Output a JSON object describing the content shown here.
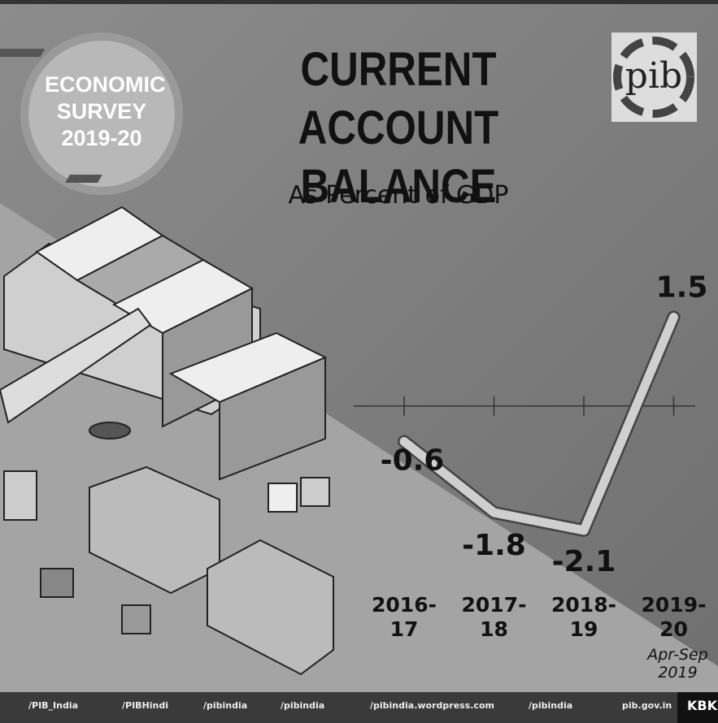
{
  "badge": "ECONOMIC SURVEY 2019-20",
  "logo": "pib",
  "chart_data": {
    "type": "line",
    "title": "CURRENT ACCOUNT BALANCE",
    "subtitle": "As Percent of GDP",
    "categories": [
      "2016-17",
      "2017-18",
      "2018-19",
      "2019-20"
    ],
    "annotation": "Apr-Sep 2019",
    "values": [
      -0.6,
      -1.8,
      -2.1,
      1.5
    ],
    "color": "#cfcfcf",
    "ylim": [
      -2.5,
      2
    ]
  },
  "footer": [
    "/PIB_India",
    "/PIBHindi",
    "/pibindia",
    "/pibindia",
    "/pibindia.wordpress.com",
    "/pibindia",
    "pib.gov.in",
    "KBK"
  ]
}
